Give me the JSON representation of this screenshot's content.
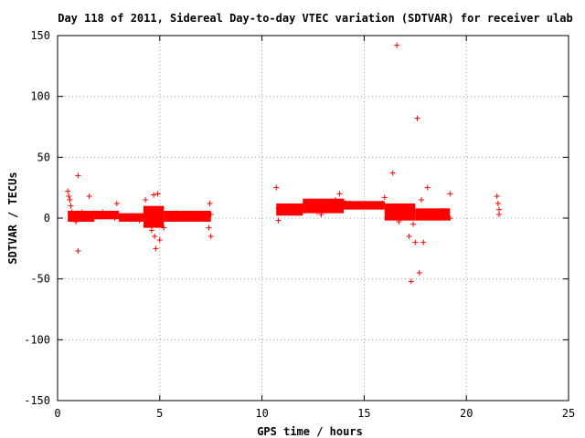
{
  "chart_data": {
    "type": "scatter",
    "title": "Day 118 of 2011, Sidereal Day-to-day VTEC variation (SDTVAR) for receiver ulab",
    "xlabel": "GPS time / hours",
    "ylabel": "SDTVAR / TECUs",
    "xlim": [
      0,
      25
    ],
    "ylim": [
      -150,
      150
    ],
    "xticks": [
      0,
      5,
      10,
      15,
      20,
      25
    ],
    "yticks": [
      -150,
      -100,
      -50,
      0,
      50,
      100,
      150
    ],
    "grid": true,
    "marker": "+",
    "color": "#ff0000",
    "series": [
      {
        "values": [
          [
            0.5,
            22
          ],
          [
            0.55,
            18
          ],
          [
            0.6,
            15
          ],
          [
            0.65,
            10
          ],
          [
            0.7,
            5
          ],
          [
            0.75,
            0
          ],
          [
            0.8,
            2
          ],
          [
            0.9,
            -3
          ],
          [
            1.0,
            35
          ],
          [
            1.0,
            -27
          ],
          [
            1.1,
            3
          ],
          [
            1.2,
            5
          ],
          [
            1.3,
            0
          ],
          [
            1.5,
            2
          ],
          [
            1.55,
            18
          ],
          [
            1.6,
            3
          ],
          [
            1.8,
            4
          ],
          [
            2.0,
            2
          ],
          [
            2.2,
            5
          ],
          [
            2.4,
            3
          ],
          [
            2.6,
            2
          ],
          [
            2.8,
            0
          ],
          [
            2.9,
            12
          ],
          [
            3.0,
            2
          ],
          [
            3.2,
            1
          ],
          [
            3.4,
            0
          ],
          [
            3.6,
            -1
          ],
          [
            3.8,
            0
          ],
          [
            4.0,
            -2
          ],
          [
            4.2,
            2
          ],
          [
            4.3,
            15
          ],
          [
            4.35,
            -5
          ],
          [
            4.5,
            1
          ],
          [
            4.6,
            -10
          ],
          [
            4.7,
            19
          ],
          [
            4.75,
            -15
          ],
          [
            4.8,
            -25
          ],
          [
            4.9,
            20
          ],
          [
            5.0,
            -18
          ],
          [
            5.1,
            5
          ],
          [
            5.2,
            -8
          ],
          [
            5.4,
            3
          ],
          [
            5.6,
            2
          ],
          [
            5.8,
            4
          ],
          [
            6.0,
            3
          ],
          [
            6.2,
            2
          ],
          [
            6.4,
            1
          ],
          [
            6.6,
            2
          ],
          [
            6.8,
            1
          ],
          [
            7.0,
            2
          ],
          [
            7.2,
            0
          ],
          [
            7.4,
            -8
          ],
          [
            7.45,
            12
          ],
          [
            7.5,
            -15
          ],
          [
            7.5,
            3
          ],
          [
            10.7,
            25
          ],
          [
            10.8,
            8
          ],
          [
            10.8,
            -2
          ],
          [
            11.0,
            5
          ],
          [
            11.2,
            8
          ],
          [
            11.5,
            6
          ],
          [
            11.8,
            9
          ],
          [
            12.0,
            10
          ],
          [
            12.2,
            8
          ],
          [
            12.5,
            10
          ],
          [
            12.7,
            5
          ],
          [
            12.9,
            3
          ],
          [
            13.0,
            8
          ],
          [
            13.2,
            10
          ],
          [
            13.4,
            12
          ],
          [
            13.6,
            15
          ],
          [
            13.8,
            20
          ],
          [
            14.0,
            14
          ],
          [
            14.3,
            12
          ],
          [
            14.6,
            10
          ],
          [
            15.0,
            11
          ],
          [
            15.3,
            10
          ],
          [
            15.6,
            10
          ],
          [
            15.9,
            12
          ],
          [
            16.0,
            17
          ],
          [
            16.2,
            8
          ],
          [
            16.4,
            37
          ],
          [
            16.5,
            2
          ],
          [
            16.6,
            142
          ],
          [
            16.7,
            -3
          ],
          [
            16.8,
            0
          ],
          [
            17.0,
            8
          ],
          [
            17.2,
            -15
          ],
          [
            17.3,
            -52
          ],
          [
            17.4,
            -5
          ],
          [
            17.5,
            -20
          ],
          [
            17.6,
            82
          ],
          [
            17.7,
            -45
          ],
          [
            17.8,
            15
          ],
          [
            17.9,
            -20
          ],
          [
            18.0,
            3
          ],
          [
            18.1,
            25
          ],
          [
            18.3,
            2
          ],
          [
            18.6,
            3
          ],
          [
            18.9,
            1
          ],
          [
            19.2,
            20
          ],
          [
            19.2,
            0
          ],
          [
            21.5,
            18
          ],
          [
            21.55,
            12
          ],
          [
            21.6,
            7
          ],
          [
            21.6,
            3
          ]
        ]
      }
    ],
    "bands": [
      {
        "x_start": 0.5,
        "x_end": 1.8,
        "y_low": -3,
        "y_high": 6
      },
      {
        "x_start": 1.8,
        "x_end": 3.0,
        "y_low": -1,
        "y_high": 6
      },
      {
        "x_start": 3.0,
        "x_end": 4.2,
        "y_low": -3,
        "y_high": 4
      },
      {
        "x_start": 4.2,
        "x_end": 5.2,
        "y_low": -8,
        "y_high": 10
      },
      {
        "x_start": 5.2,
        "x_end": 7.5,
        "y_low": -3,
        "y_high": 6
      },
      {
        "x_start": 10.7,
        "x_end": 12.0,
        "y_low": 2,
        "y_high": 12
      },
      {
        "x_start": 12.0,
        "x_end": 14.0,
        "y_low": 4,
        "y_high": 16
      },
      {
        "x_start": 14.0,
        "x_end": 16.0,
        "y_low": 7,
        "y_high": 14
      },
      {
        "x_start": 16.0,
        "x_end": 17.5,
        "y_low": -2,
        "y_high": 12
      },
      {
        "x_start": 17.5,
        "x_end": 19.2,
        "y_low": -2,
        "y_high": 8
      }
    ]
  }
}
